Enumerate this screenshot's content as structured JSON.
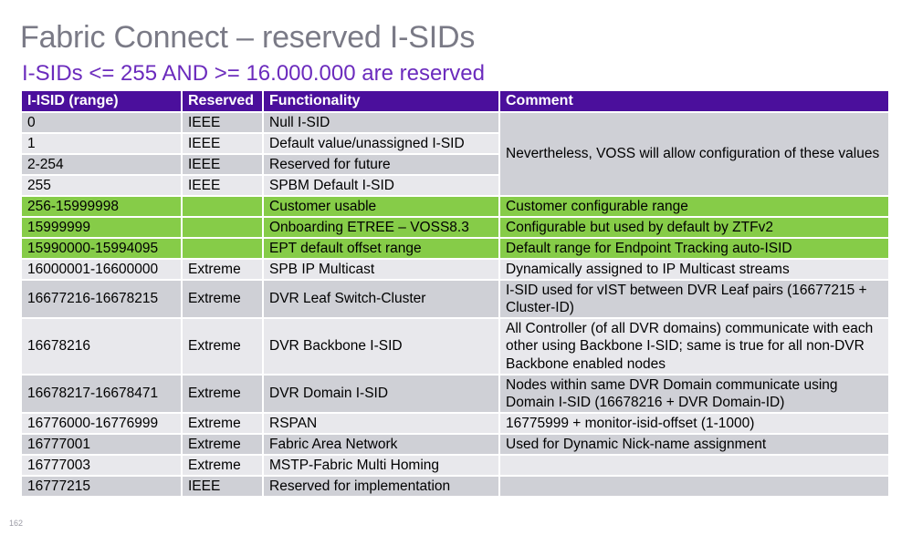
{
  "title": "Fabric Connect – reserved I-SIDs",
  "subtitle": "I-SIDs <= 255 AND >= 16.000.000 are reserved",
  "page_number": "162",
  "colors": {
    "header_bg": "#4b0f9c",
    "row_dark": "#cfd0d6",
    "row_light": "#e8e8ec",
    "row_green": "#86cc48",
    "subtitle": "#6b2bbd"
  },
  "table": {
    "headers": {
      "range": "I-ISID (range)",
      "reserved": "Reserved",
      "functionality": "Functionality",
      "comment": "Comment"
    },
    "merged_comment": "Nevertheless, VOSS will allow configuration of these values",
    "rows": [
      {
        "range": "0",
        "reserved": "IEEE",
        "functionality": "Null I-SID",
        "comment": ""
      },
      {
        "range": "1",
        "reserved": "IEEE",
        "functionality": "Default value/unassigned I-SID",
        "comment": ""
      },
      {
        "range": "2-254",
        "reserved": "IEEE",
        "functionality": "Reserved for future",
        "comment": ""
      },
      {
        "range": "255",
        "reserved": "IEEE",
        "functionality": "SPBM Default I-SID",
        "comment": ""
      },
      {
        "range": "256-15999998",
        "reserved": "",
        "functionality": "Customer usable",
        "comment": "Customer configurable range"
      },
      {
        "range": "15999999",
        "reserved": "",
        "functionality": "Onboarding ETREE – VOSS8.3",
        "comment": "Configurable but used by default by ZTFv2"
      },
      {
        "range": "15990000-15994095",
        "reserved": "",
        "functionality": "EPT default offset range",
        "comment": "Default range for Endpoint Tracking auto-ISID"
      },
      {
        "range": "16000001-16600000",
        "reserved": "Extreme",
        "functionality": "SPB IP Multicast",
        "comment": "Dynamically assigned to IP Multicast streams"
      },
      {
        "range": "16677216-16678215",
        "reserved": "Extreme",
        "functionality": "DVR Leaf Switch-Cluster",
        "comment": "I-SID used for vIST between DVR Leaf pairs (16677215 + Cluster-ID)"
      },
      {
        "range": "16678216",
        "reserved": "Extreme",
        "functionality": "DVR Backbone I-SID",
        "comment": "All Controller (of all DVR domains) communicate with each other using Backbone I-SID; same is true for all non-DVR Backbone enabled nodes"
      },
      {
        "range": "16678217-16678471",
        "reserved": "Extreme",
        "functionality": "DVR Domain I-SID",
        "comment": "Nodes within same DVR Domain communicate using Domain I-SID (16678216 + DVR Domain-ID)"
      },
      {
        "range": "16776000-16776999",
        "reserved": "Extreme",
        "functionality": "RSPAN",
        "comment": "16775999 + monitor-isid-offset (1-1000)"
      },
      {
        "range": "16777001",
        "reserved": "Extreme",
        "functionality": "Fabric Area Network",
        "comment": "Used for Dynamic Nick-name assignment"
      },
      {
        "range": "16777003",
        "reserved": "Extreme",
        "functionality": "MSTP-Fabric Multi Homing",
        "comment": ""
      },
      {
        "range": "16777215",
        "reserved": "IEEE",
        "functionality": "Reserved for implementation",
        "comment": ""
      }
    ]
  }
}
